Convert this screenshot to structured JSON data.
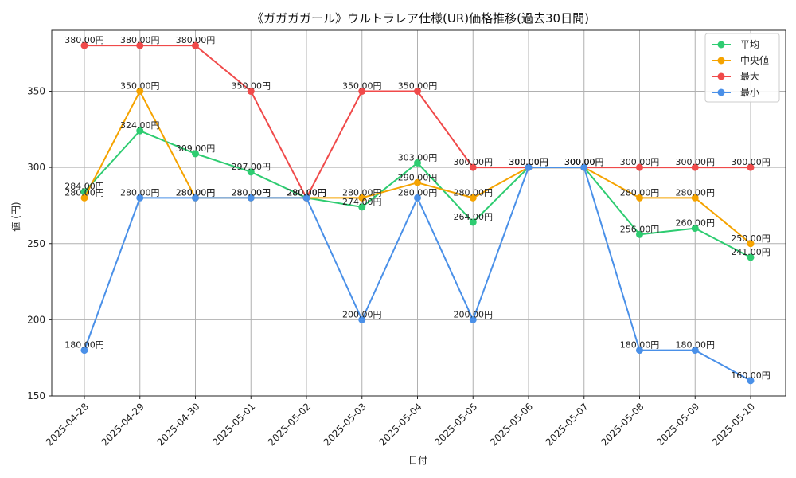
{
  "chart_data": {
    "type": "line",
    "title": "《ガガガガール》ウルトラレア仕様(UR)価格推移(過去30日間)",
    "xlabel": "日付",
    "ylabel": "値 (円)",
    "ylim": [
      150,
      390
    ],
    "yticks": [
      150,
      200,
      250,
      300,
      350
    ],
    "grid": true,
    "legend_position": "top-right",
    "value_suffix": "円",
    "categories": [
      "2025-04-28",
      "2025-04-29",
      "2025-04-30",
      "2025-05-01",
      "2025-05-02",
      "2025-05-03",
      "2025-05-04",
      "2025-05-05",
      "2025-05-06",
      "2025-05-07",
      "2025-05-08",
      "2025-05-09",
      "2025-05-10"
    ],
    "series": [
      {
        "name": "平均",
        "color": "#2ecc71",
        "values": [
          284,
          324,
          309,
          297,
          280,
          274,
          303,
          264,
          300,
          300,
          256,
          260,
          241
        ]
      },
      {
        "name": "中央値",
        "color": "#f5a300",
        "values": [
          280,
          350,
          280,
          280,
          280,
          280,
          290,
          280,
          300,
          300,
          280,
          280,
          250
        ]
      },
      {
        "name": "最大",
        "color": "#f04a4a",
        "values": [
          380,
          380,
          380,
          350,
          280,
          350,
          350,
          300,
          300,
          300,
          300,
          300,
          300
        ]
      },
      {
        "name": "最小",
        "color": "#4a90e8",
        "values": [
          180,
          280,
          280,
          280,
          280,
          200,
          280,
          200,
          300,
          300,
          180,
          180,
          160
        ]
      }
    ]
  }
}
